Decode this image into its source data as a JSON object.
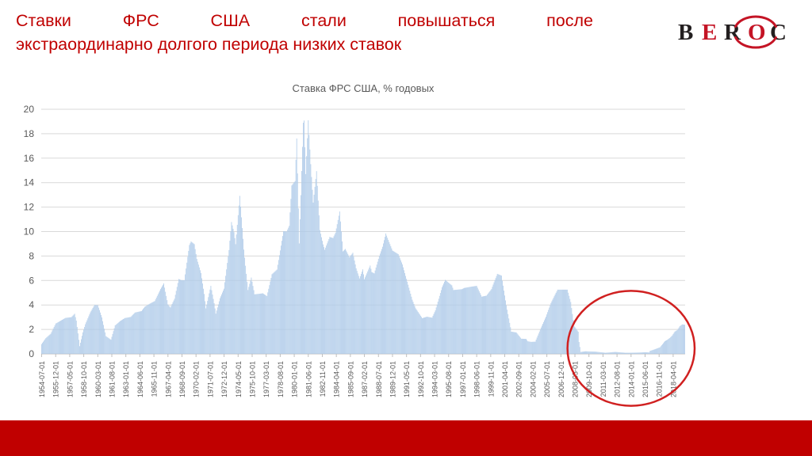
{
  "slide": {
    "title": {
      "line1": "Ставки ФРС США стали повышаться после",
      "line2": "экстраординарно долгого периода низких ставок",
      "color": "#C00000"
    },
    "logo": {
      "letters": [
        "B",
        "E",
        "R",
        "O",
        "C"
      ],
      "black": "#231F20",
      "red": "#C41425"
    },
    "footer_color": "#C00000"
  },
  "chart_data": {
    "type": "bar",
    "title": "Ставка ФРС США, % годовых",
    "ylabel": "",
    "xlabel": "",
    "ylim": [
      0,
      20
    ],
    "y_ticks": [
      0,
      2,
      4,
      6,
      8,
      10,
      12,
      14,
      16,
      18,
      20
    ],
    "grid": "horizontal",
    "legend_position": "none",
    "bar_color": "#AFCBE9",
    "bar_edge_color": "#9CBCDF",
    "grid_color": "#D9D9D9",
    "axis_line_color": "#BFBFBF",
    "text_color": "#595959",
    "x_start_month": "1954-07",
    "x_end_month": "2019-06",
    "x_tick_interval_months": 17,
    "x_tick_labels": [
      "1954-07-01",
      "1955-12-01",
      "1957-05-01",
      "1958-10-01",
      "1960-03-01",
      "1961-08-01",
      "1963-01-01",
      "1964-06-01",
      "1965-11-01",
      "1967-04-01",
      "1968-09-01",
      "1970-02-01",
      "1971-07-01",
      "1972-12-01",
      "1974-05-01",
      "1975-10-01",
      "1977-03-01",
      "1978-08-01",
      "1980-01-01",
      "1981-06-01",
      "1982-11-01",
      "1984-04-01",
      "1985-09-01",
      "1987-02-01",
      "1988-07-01",
      "1989-12-01",
      "1991-05-01",
      "1992-10-01",
      "1994-03-01",
      "1995-08-01",
      "1997-01-01",
      "1998-06-01",
      "1999-11-01",
      "2001-04-01",
      "2002-09-01",
      "2004-02-01",
      "2005-07-01",
      "2006-12-01",
      "2008-05-01",
      "2009-10-01",
      "2011-03-01",
      "2012-08-01",
      "2014-01-01",
      "2015-06-01",
      "2016-11-01",
      "2018-04-01"
    ],
    "series_name": "Ставка ФРС США, % годовых",
    "interpolation": "linear monthly between anchor_points",
    "anchor_points": [
      [
        "1954-07",
        0.8
      ],
      [
        "1954-12",
        1.28
      ],
      [
        "1955-06",
        1.64
      ],
      [
        "1955-12",
        2.48
      ],
      [
        "1956-06",
        2.71
      ],
      [
        "1956-12",
        2.94
      ],
      [
        "1957-07",
        3.0
      ],
      [
        "1957-11",
        3.28
      ],
      [
        "1958-01",
        2.72
      ],
      [
        "1958-05",
        0.63
      ],
      [
        "1958-09",
        1.76
      ],
      [
        "1958-12",
        2.42
      ],
      [
        "1959-06",
        3.39
      ],
      [
        "1959-11",
        4.0
      ],
      [
        "1960-03",
        3.98
      ],
      [
        "1960-08",
        2.98
      ],
      [
        "1961-01",
        1.45
      ],
      [
        "1961-07",
        1.16
      ],
      [
        "1961-12",
        2.33
      ],
      [
        "1962-06",
        2.68
      ],
      [
        "1962-12",
        2.93
      ],
      [
        "1963-07",
        3.02
      ],
      [
        "1963-12",
        3.38
      ],
      [
        "1964-08",
        3.5
      ],
      [
        "1964-12",
        3.85
      ],
      [
        "1965-06",
        4.1
      ],
      [
        "1965-12",
        4.32
      ],
      [
        "1966-07",
        5.3
      ],
      [
        "1966-11",
        5.76
      ],
      [
        "1967-04",
        4.05
      ],
      [
        "1967-07",
        3.79
      ],
      [
        "1967-12",
        4.51
      ],
      [
        "1968-05",
        6.12
      ],
      [
        "1968-08",
        6.03
      ],
      [
        "1968-12",
        6.02
      ],
      [
        "1969-06",
        8.9
      ],
      [
        "1969-08",
        9.19
      ],
      [
        "1969-12",
        8.97
      ],
      [
        "1970-03",
        7.76
      ],
      [
        "1970-08",
        6.61
      ],
      [
        "1970-12",
        4.9
      ],
      [
        "1971-02",
        3.72
      ],
      [
        "1971-08",
        5.56
      ],
      [
        "1971-12",
        4.14
      ],
      [
        "1972-02",
        3.29
      ],
      [
        "1972-07",
        4.55
      ],
      [
        "1972-12",
        5.33
      ],
      [
        "1973-06",
        8.49
      ],
      [
        "1973-09",
        10.78
      ],
      [
        "1973-12",
        9.95
      ],
      [
        "1974-02",
        8.97
      ],
      [
        "1974-07",
        12.92
      ],
      [
        "1974-12",
        8.53
      ],
      [
        "1975-05",
        5.22
      ],
      [
        "1975-09",
        6.24
      ],
      [
        "1976-01",
        4.87
      ],
      [
        "1976-11",
        4.95
      ],
      [
        "1977-04",
        4.73
      ],
      [
        "1977-10",
        6.51
      ],
      [
        "1978-04",
        6.89
      ],
      [
        "1978-12",
        10.03
      ],
      [
        "1979-04",
        10.01
      ],
      [
        "1979-07",
        10.47
      ],
      [
        "1979-10",
        13.77
      ],
      [
        "1980-02",
        14.13
      ],
      [
        "1980-04",
        17.61
      ],
      [
        "1980-07",
        9.03
      ],
      [
        "1980-12",
        18.9
      ],
      [
        "1981-01",
        19.08
      ],
      [
        "1981-03",
        14.7
      ],
      [
        "1981-06",
        19.1
      ],
      [
        "1981-09",
        15.51
      ],
      [
        "1981-12",
        12.37
      ],
      [
        "1982-04",
        14.94
      ],
      [
        "1982-08",
        10.12
      ],
      [
        "1982-12",
        8.95
      ],
      [
        "1983-02",
        8.51
      ],
      [
        "1983-08",
        9.56
      ],
      [
        "1983-12",
        9.47
      ],
      [
        "1984-03",
        9.91
      ],
      [
        "1984-08",
        11.64
      ],
      [
        "1984-12",
        8.38
      ],
      [
        "1985-03",
        8.58
      ],
      [
        "1985-08",
        7.9
      ],
      [
        "1985-12",
        8.27
      ],
      [
        "1986-04",
        6.99
      ],
      [
        "1986-08",
        6.17
      ],
      [
        "1986-12",
        6.91
      ],
      [
        "1987-02",
        6.1
      ],
      [
        "1987-09",
        7.22
      ],
      [
        "1987-11",
        6.69
      ],
      [
        "1988-02",
        6.58
      ],
      [
        "1988-08",
        8.01
      ],
      [
        "1988-12",
        8.76
      ],
      [
        "1989-04",
        9.84
      ],
      [
        "1989-12",
        8.45
      ],
      [
        "1990-07",
        8.15
      ],
      [
        "1990-12",
        7.31
      ],
      [
        "1991-06",
        5.9
      ],
      [
        "1991-12",
        4.43
      ],
      [
        "1992-04",
        3.73
      ],
      [
        "1992-09",
        3.22
      ],
      [
        "1992-12",
        2.92
      ],
      [
        "1993-06",
        3.04
      ],
      [
        "1993-12",
        2.96
      ],
      [
        "1994-04",
        3.56
      ],
      [
        "1994-12",
        5.45
      ],
      [
        "1995-04",
        6.05
      ],
      [
        "1995-12",
        5.6
      ],
      [
        "1996-02",
        5.22
      ],
      [
        "1996-12",
        5.29
      ],
      [
        "1997-03",
        5.39
      ],
      [
        "1997-12",
        5.5
      ],
      [
        "1998-06",
        5.56
      ],
      [
        "1998-12",
        4.68
      ],
      [
        "1999-06",
        4.76
      ],
      [
        "1999-12",
        5.3
      ],
      [
        "2000-03",
        5.85
      ],
      [
        "2000-07",
        6.54
      ],
      [
        "2000-12",
        6.4
      ],
      [
        "2001-01",
        5.98
      ],
      [
        "2001-06",
        3.97
      ],
      [
        "2001-12",
        1.82
      ],
      [
        "2002-06",
        1.75
      ],
      [
        "2002-12",
        1.24
      ],
      [
        "2003-06",
        1.22
      ],
      [
        "2003-08",
        1.03
      ],
      [
        "2003-12",
        0.98
      ],
      [
        "2004-05",
        1.0
      ],
      [
        "2004-12",
        2.16
      ],
      [
        "2005-06",
        3.04
      ],
      [
        "2005-12",
        4.16
      ],
      [
        "2006-06",
        4.99
      ],
      [
        "2006-08",
        5.25
      ],
      [
        "2007-08",
        5.25
      ],
      [
        "2007-12",
        4.24
      ],
      [
        "2008-04",
        2.28
      ],
      [
        "2008-09",
        1.81
      ],
      [
        "2008-10",
        0.97
      ],
      [
        "2008-12",
        0.16
      ],
      [
        "2009-06",
        0.21
      ],
      [
        "2010-06",
        0.18
      ],
      [
        "2011-06",
        0.09
      ],
      [
        "2012-06",
        0.16
      ],
      [
        "2013-06",
        0.09
      ],
      [
        "2014-06",
        0.1
      ],
      [
        "2015-06",
        0.13
      ],
      [
        "2015-11",
        0.12
      ],
      [
        "2015-12",
        0.24
      ],
      [
        "2016-06",
        0.38
      ],
      [
        "2016-12",
        0.54
      ],
      [
        "2017-03",
        0.79
      ],
      [
        "2017-06",
        1.04
      ],
      [
        "2017-09",
        1.15
      ],
      [
        "2017-12",
        1.3
      ],
      [
        "2018-03",
        1.51
      ],
      [
        "2018-06",
        1.82
      ],
      [
        "2018-09",
        1.95
      ],
      [
        "2018-12",
        2.27
      ],
      [
        "2019-03",
        2.41
      ],
      [
        "2019-06",
        2.38
      ]
    ],
    "annotation_circle": {
      "center_month": "2014-01",
      "center_value": 0.45,
      "radius_months": 77,
      "radius_value": 4.7,
      "color": "#D02020",
      "stroke_width": 2.5
    }
  }
}
